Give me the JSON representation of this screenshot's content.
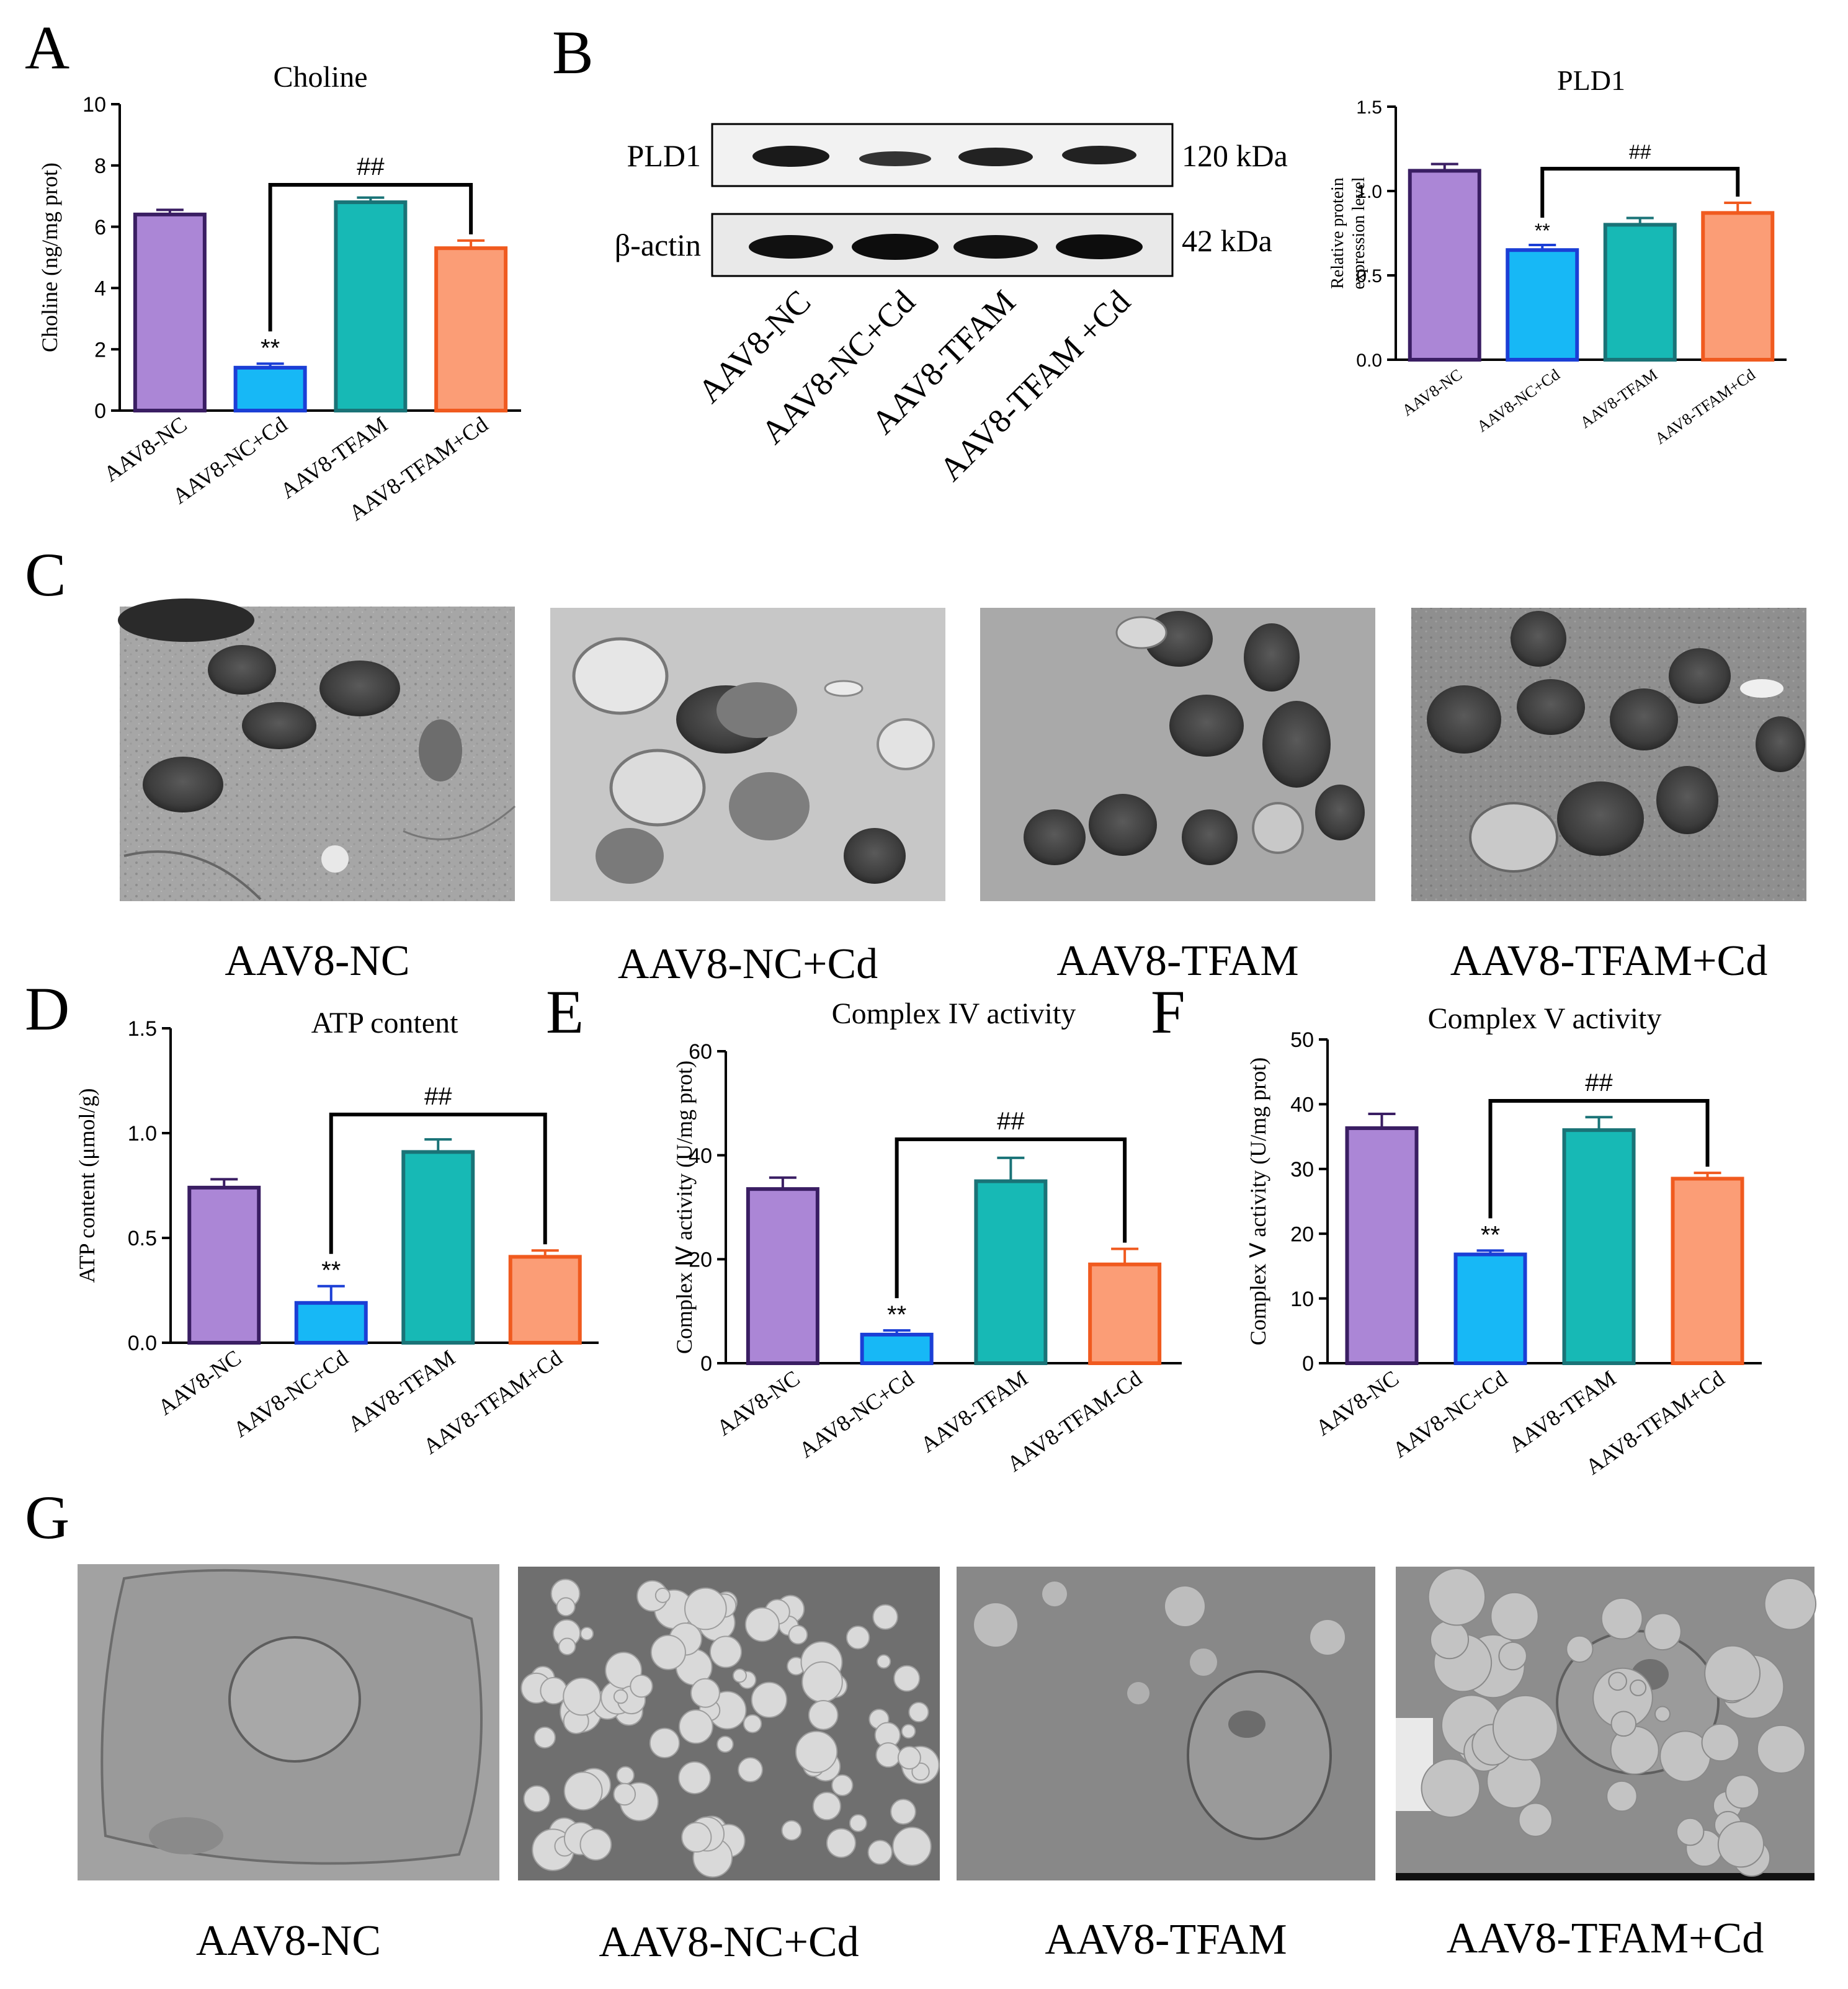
{
  "panels": {
    "A": "A",
    "B": "B",
    "C": "C",
    "D": "D",
    "E": "E",
    "F": "F",
    "G": "G"
  },
  "colors": {
    "AAV8-NC": {
      "fill": "#ab86d6",
      "stroke": "#3a1e63"
    },
    "AAV8-NC+Cd": {
      "fill": "#17b8f6",
      "stroke": "#1b3fd6"
    },
    "AAV8-TFAM": {
      "fill": "#17b9b5",
      "stroke": "#1a7377"
    },
    "AAV8-TFAM+Cd": {
      "fill": "#fb9d76",
      "stroke": "#f05a1f"
    }
  },
  "western_blot": {
    "rows": [
      {
        "protein": "PLD1",
        "size": "120 kDa"
      },
      {
        "protein": "β-actin",
        "size": "42 kDa"
      }
    ],
    "lanes": [
      "AAV8-NC",
      "AAV8-NC+Cd",
      "AAV8-TFAM",
      "AAV8-TFAM +Cd"
    ]
  },
  "em_captions_C": [
    "AAV8-NC",
    "AAV8-NC+Cd",
    "AAV8-TFAM",
    "AAV8-TFAM+Cd"
  ],
  "em_captions_G": [
    "AAV8-NC",
    "AAV8-NC+Cd",
    "AAV8-TFAM",
    "AAV8-TFAM+Cd"
  ],
  "chart_data": [
    {
      "panel": "A",
      "type": "bar",
      "title": "Choline",
      "xlabel": "",
      "ylabel": "Choline (ng/mg prot)",
      "categories": [
        "AAV8-NC",
        "AAV8-NC+Cd",
        "AAV8-TFAM",
        "AAV8-TFAM+Cd"
      ],
      "values": [
        6.4,
        1.4,
        6.8,
        5.3
      ],
      "errors": [
        0.15,
        0.13,
        0.15,
        0.25
      ],
      "ylim": [
        0,
        10
      ],
      "yticks": [
        "0",
        "2",
        "4",
        "6",
        "8",
        "10"
      ],
      "star_label": "**",
      "bracket_label": "##"
    },
    {
      "panel": "B",
      "type": "bar",
      "title": "PLD1",
      "xlabel": "",
      "ylabel": "Relative protein expression level",
      "categories": [
        "AAV8-NC",
        "AAV8-NC+Cd",
        "AAV8-TFAM",
        "AAV8-TFAM+Cd"
      ],
      "values": [
        1.12,
        0.65,
        0.8,
        0.87
      ],
      "errors": [
        0.04,
        0.03,
        0.04,
        0.06
      ],
      "ylim": [
        0,
        1.5
      ],
      "yticks": [
        "0.0",
        "0.5",
        "1.0",
        "1.5"
      ],
      "star_label": "**",
      "bracket_label": "##"
    },
    {
      "panel": "D",
      "type": "bar",
      "title": "ATP content",
      "xlabel": "",
      "ylabel": "ATP content (μmol/g)",
      "categories": [
        "AAV8-NC",
        "AAV8-NC+Cd",
        "AAV8-TFAM",
        "AAV8-TFAM+Cd"
      ],
      "values": [
        0.74,
        0.19,
        0.91,
        0.41
      ],
      "errors": [
        0.04,
        0.08,
        0.06,
        0.03
      ],
      "ylim": [
        0,
        1.5
      ],
      "yticks": [
        "0.0",
        "0.5",
        "1.0",
        "1.5"
      ],
      "star_label": "**",
      "bracket_label": "##"
    },
    {
      "panel": "E",
      "type": "bar",
      "title": "Complex IV activity",
      "xlabel": "",
      "ylabel": "Complex Ⅳ activity (U/mg prot)",
      "categories": [
        "AAV8-NC",
        "AAV8-NC+Cd",
        "AAV8-TFAM",
        "AAV8-TFAM-Cd"
      ],
      "values": [
        33.5,
        5.5,
        35.0,
        19.0
      ],
      "errors": [
        2.2,
        0.8,
        4.5,
        3.0
      ],
      "ylim": [
        0,
        60
      ],
      "yticks": [
        "0",
        "20",
        "40",
        "60"
      ],
      "star_label": "**",
      "bracket_label": "##"
    },
    {
      "panel": "F",
      "type": "bar",
      "title": "Complex V activity",
      "xlabel": "",
      "ylabel": "Complex Ⅴ activity (U/mg prot)",
      "categories": [
        "AAV8-NC",
        "AAV8-NC+Cd",
        "AAV8-TFAM",
        "AAV8-TFAM+Cd"
      ],
      "values": [
        36.3,
        16.8,
        36.0,
        28.5
      ],
      "errors": [
        2.2,
        0.6,
        2.0,
        0.9
      ],
      "ylim": [
        0,
        50
      ],
      "yticks": [
        "0",
        "10",
        "20",
        "30",
        "40",
        "50"
      ],
      "star_label": "**",
      "bracket_label": "##"
    }
  ]
}
